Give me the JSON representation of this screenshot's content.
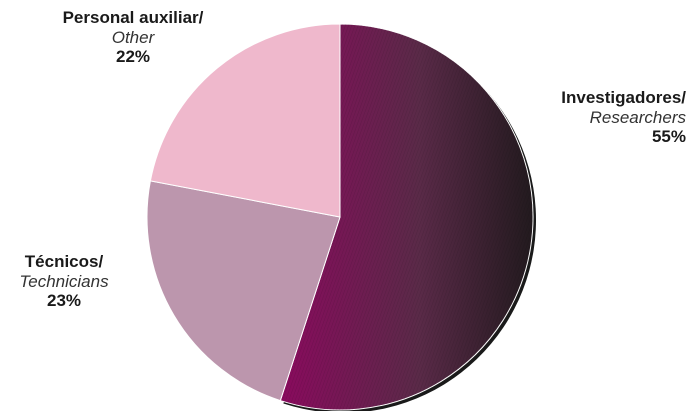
{
  "chart_data": {
    "type": "pie",
    "slices": [
      {
        "label_es": "Investigadores/",
        "label_en": "Researchers",
        "percent_text": "55%",
        "value": 55,
        "color": "#6e1450"
      },
      {
        "label_es": "Técnicos/",
        "label_en": "Technicians",
        "percent_text": "23%",
        "value": 23,
        "color": "#bc96ad"
      },
      {
        "label_es": "Personal auxiliar/",
        "label_en": "Other",
        "percent_text": "22%",
        "value": 22,
        "color": "#efb8cc"
      }
    ],
    "start": "top, clockwise",
    "legend": "none"
  }
}
